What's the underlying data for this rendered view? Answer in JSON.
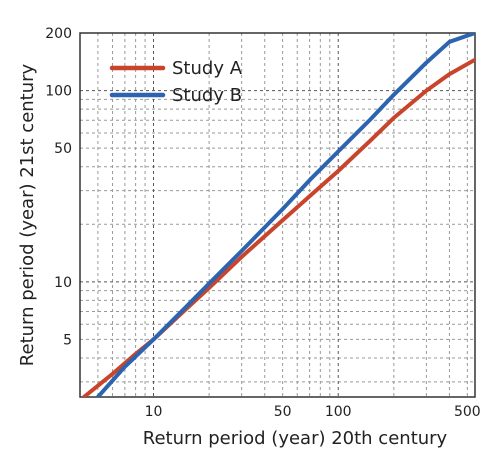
{
  "chart_data": {
    "type": "line",
    "xscale": "log",
    "yscale": "log",
    "xlim": [
      4,
      550
    ],
    "ylim": [
      2.5,
      200
    ],
    "xlabel": "Return period (year) 20th century",
    "ylabel": "Return period (year) 21st century",
    "xticks": [
      10,
      50,
      100,
      500
    ],
    "yticks": [
      5,
      10,
      50,
      100,
      200
    ],
    "grid": true,
    "legend": "top-left",
    "series": [
      {
        "name": "Study A",
        "color": "#c8442a",
        "x": [
          4.2,
          6,
          8,
          10,
          15,
          20,
          30,
          50,
          70,
          100,
          150,
          200,
          300,
          400,
          550
        ],
        "y": [
          2.5,
          3.3,
          4.2,
          5.0,
          7.2,
          9.3,
          13.5,
          21,
          28,
          38,
          55,
          72,
          100,
          122,
          145
        ]
      },
      {
        "name": "Study B",
        "color": "#2d64b0",
        "x": [
          5,
          7,
          10,
          15,
          20,
          30,
          50,
          70,
          100,
          150,
          200,
          300,
          400,
          550
        ],
        "y": [
          2.5,
          3.6,
          5.0,
          7.4,
          9.8,
          14.5,
          24,
          34,
          48,
          71,
          95,
          140,
          180,
          200
        ]
      }
    ]
  }
}
